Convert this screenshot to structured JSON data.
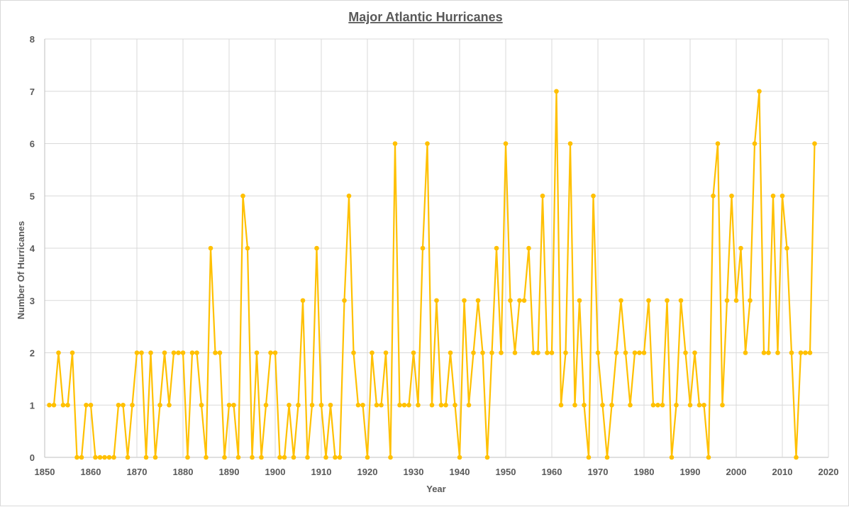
{
  "chart_data": {
    "type": "line",
    "title": "Major Atlantic Hurricanes",
    "xlabel": "Year",
    "ylabel": "Number Of Hurricanes",
    "xlim": [
      1850,
      2020
    ],
    "ylim": [
      0,
      8
    ],
    "x_ticks": [
      1850,
      1860,
      1870,
      1880,
      1890,
      1900,
      1910,
      1920,
      1930,
      1940,
      1950,
      1960,
      1970,
      1980,
      1990,
      2000,
      2010,
      2020
    ],
    "y_ticks": [
      0,
      1,
      2,
      3,
      4,
      5,
      6,
      7,
      8
    ],
    "grid": true,
    "series": [
      {
        "name": "Major Atlantic Hurricanes",
        "color": "#ffc000",
        "x": [
          1851,
          1852,
          1853,
          1854,
          1855,
          1856,
          1857,
          1858,
          1859,
          1860,
          1861,
          1862,
          1863,
          1864,
          1865,
          1866,
          1867,
          1868,
          1869,
          1870,
          1871,
          1872,
          1873,
          1874,
          1875,
          1876,
          1877,
          1878,
          1879,
          1880,
          1881,
          1882,
          1883,
          1884,
          1885,
          1886,
          1887,
          1888,
          1889,
          1890,
          1891,
          1892,
          1893,
          1894,
          1895,
          1896,
          1897,
          1898,
          1899,
          1900,
          1901,
          1902,
          1903,
          1904,
          1905,
          1906,
          1907,
          1908,
          1909,
          1910,
          1911,
          1912,
          1913,
          1914,
          1915,
          1916,
          1917,
          1918,
          1919,
          1920,
          1921,
          1922,
          1923,
          1924,
          1925,
          1926,
          1927,
          1928,
          1929,
          1930,
          1931,
          1932,
          1933,
          1934,
          1935,
          1936,
          1937,
          1938,
          1939,
          1940,
          1941,
          1942,
          1943,
          1944,
          1945,
          1946,
          1947,
          1948,
          1949,
          1950,
          1951,
          1952,
          1953,
          1954,
          1955,
          1956,
          1957,
          1958,
          1959,
          1960,
          1961,
          1962,
          1963,
          1964,
          1965,
          1966,
          1967,
          1968,
          1969,
          1970,
          1971,
          1972,
          1973,
          1974,
          1975,
          1976,
          1977,
          1978,
          1979,
          1980,
          1981,
          1982,
          1983,
          1984,
          1985,
          1986,
          1987,
          1988,
          1989,
          1990,
          1991,
          1992,
          1993,
          1994,
          1995,
          1996,
          1997,
          1998,
          1999,
          2000,
          2001,
          2002,
          2003,
          2004,
          2005,
          2006,
          2007,
          2008,
          2009,
          2010,
          2011,
          2012,
          2013,
          2014,
          2015,
          2016,
          2017
        ],
        "values": [
          1,
          1,
          2,
          1,
          1,
          2,
          0,
          0,
          1,
          1,
          0,
          0,
          0,
          0,
          0,
          1,
          1,
          0,
          1,
          2,
          2,
          0,
          2,
          0,
          1,
          2,
          1,
          2,
          2,
          2,
          0,
          2,
          2,
          1,
          0,
          4,
          2,
          2,
          0,
          1,
          1,
          0,
          5,
          4,
          0,
          2,
          0,
          1,
          2,
          2,
          0,
          0,
          1,
          0,
          1,
          3,
          0,
          1,
          4,
          1,
          0,
          1,
          0,
          0,
          3,
          5,
          2,
          1,
          1,
          0,
          2,
          1,
          1,
          2,
          0,
          6,
          1,
          1,
          1,
          2,
          1,
          4,
          6,
          1,
          3,
          1,
          1,
          2,
          1,
          0,
          3,
          1,
          2,
          3,
          2,
          0,
          2,
          4,
          2,
          6,
          3,
          2,
          3,
          3,
          4,
          2,
          2,
          5,
          2,
          2,
          7,
          1,
          2,
          6,
          1,
          3,
          1,
          0,
          5,
          2,
          1,
          0,
          1,
          2,
          3,
          2,
          1,
          2,
          2,
          2,
          3,
          1,
          1,
          1,
          3,
          0,
          1,
          3,
          2,
          1,
          2,
          1,
          1,
          0,
          5,
          6,
          1,
          3,
          5,
          3,
          4,
          2,
          3,
          6,
          7,
          2,
          2,
          5,
          2,
          5,
          4,
          2,
          0,
          2,
          2,
          2,
          6
        ]
      }
    ]
  }
}
